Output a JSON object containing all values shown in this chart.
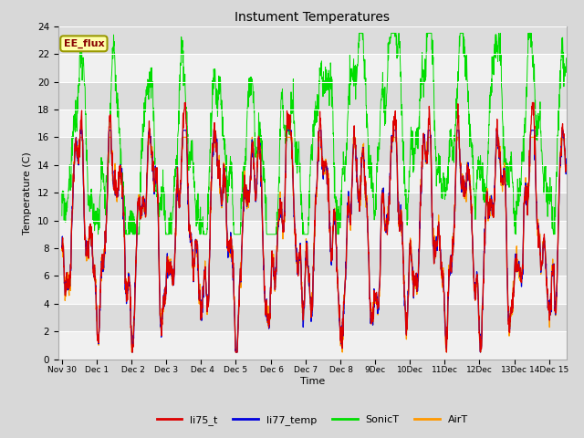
{
  "title": "Instument Temperatures",
  "xlabel": "Time",
  "ylabel": "Temperature (C)",
  "ylim": [
    0,
    24
  ],
  "background_color": "#dcdcdc",
  "colors": {
    "li75_t": "#dd0000",
    "li77_temp": "#0000dd",
    "SonicT": "#00dd00",
    "AirT": "#ff9900"
  },
  "annotation_text": "EE_flux",
  "annotation_box_color": "#ffffaa",
  "annotation_box_edge": "#999900",
  "figsize": [
    6.4,
    4.8
  ],
  "dpi": 100
}
